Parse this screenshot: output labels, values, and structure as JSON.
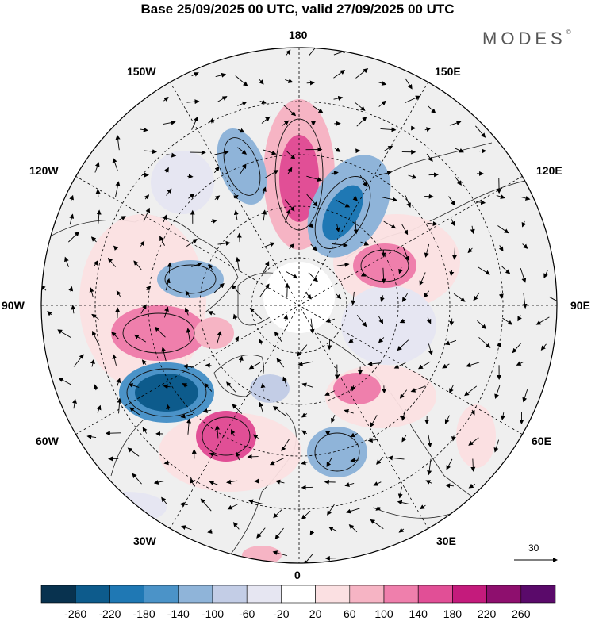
{
  "title": "Base 25/09/2025 00 UTC, valid 27/09/2025 00 UTC",
  "brand": "MODES",
  "brand_mark": "©",
  "longitude_labels": {
    "top": "180",
    "bottom": "0",
    "upper_left": "150W",
    "upper_right": "150E",
    "mid_upper_left": "120W",
    "mid_upper_right": "120E",
    "left": "90W",
    "right": "90E",
    "mid_lower_left": "60W",
    "mid_lower_right": "60E",
    "lower_left": "30W",
    "lower_right": "30E"
  },
  "reference_vector": {
    "label": "30"
  },
  "colorbar": {
    "ticks": [
      "-260",
      "-220",
      "-180",
      "-140",
      "-100",
      "-60",
      "-20",
      "20",
      "60",
      "100",
      "140",
      "180",
      "220",
      "260"
    ],
    "colors": [
      "#08324f",
      "#0d5b8c",
      "#1f78b4",
      "#4b93c8",
      "#8fb4d9",
      "#c3cde6",
      "#e6e6f2",
      "#ffffff",
      "#fbe0e2",
      "#f6b4c4",
      "#ef7fac",
      "#e14f96",
      "#c41b7c",
      "#8e0f6e",
      "#5a0a6a"
    ]
  },
  "anomalies": [
    {
      "id": "a1",
      "value": 200,
      "color": "#e14f96"
    },
    {
      "id": "a2",
      "value": -180,
      "color": "#4b93c8"
    },
    {
      "id": "a3",
      "value": -140,
      "color": "#8fb4d9"
    },
    {
      "id": "a4",
      "value": 120,
      "color": "#ef7fac"
    },
    {
      "id": "a5",
      "value": -140,
      "color": "#8fb4d9"
    },
    {
      "id": "a6",
      "value": 140,
      "color": "#ef7fac"
    },
    {
      "id": "a7",
      "value": -260,
      "color": "#0d5b8c"
    },
    {
      "id": "a8",
      "value": 160,
      "color": "#e14f96"
    },
    {
      "id": "a9",
      "value": -140,
      "color": "#8fb4d9"
    },
    {
      "id": "a10",
      "value": 120,
      "color": "#ef7fac"
    },
    {
      "id": "a11",
      "value": -60,
      "color": "#c3cde6"
    },
    {
      "id": "a12",
      "value": 60,
      "color": "#f6b4c4"
    }
  ]
}
